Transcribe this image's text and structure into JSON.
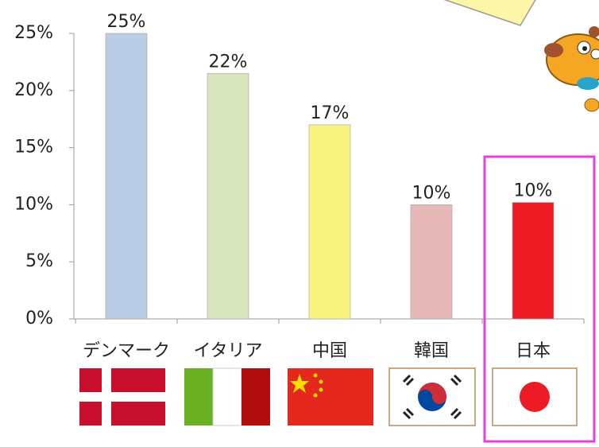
{
  "chart_data": {
    "type": "bar",
    "categories": [
      "デンマーク",
      "イタリア",
      "中国",
      "韓国",
      "日本"
    ],
    "values": [
      25,
      21.5,
      17,
      10,
      10.2
    ],
    "value_labels": [
      "25%",
      "22%",
      "17%",
      "10%",
      "10%"
    ],
    "colors": [
      "#b9cde5",
      "#d7e4bd",
      "#f9f47f",
      "#e6b9b8",
      "#ed1c24"
    ],
    "ylim": [
      0,
      25
    ],
    "yticks": [
      {
        "value": 0,
        "label": "0%"
      },
      {
        "value": 5,
        "label": "5%"
      },
      {
        "value": 10,
        "label": "10%"
      },
      {
        "value": 15,
        "label": "15%"
      },
      {
        "value": 20,
        "label": "20%"
      },
      {
        "value": 25,
        "label": "25%"
      }
    ]
  }
}
